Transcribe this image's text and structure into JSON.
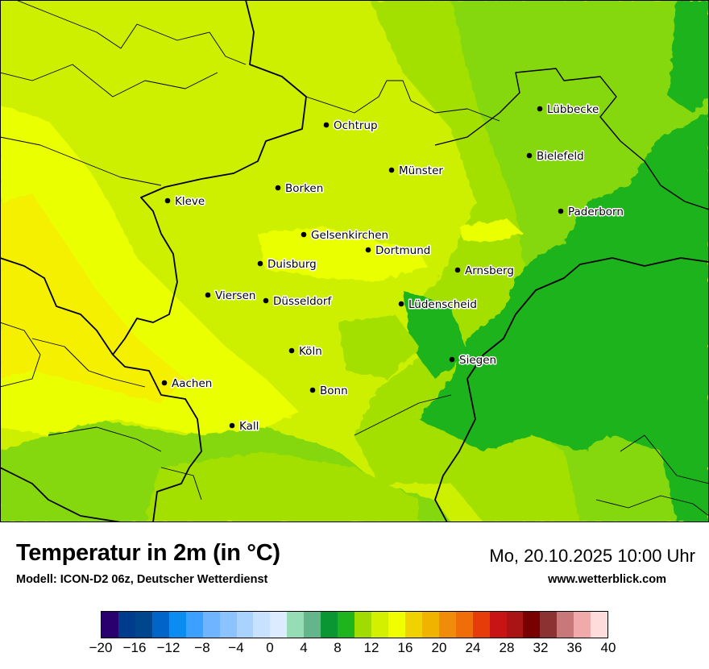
{
  "map": {
    "cities": [
      {
        "name": "Lübbecke"
      },
      {
        "name": "Ochtrup"
      },
      {
        "name": "Bielefeld"
      },
      {
        "name": "Münster"
      },
      {
        "name": "Borken"
      },
      {
        "name": "Kleve"
      },
      {
        "name": "Paderborn"
      },
      {
        "name": "Gelsenkirchen"
      },
      {
        "name": "Dortmund"
      },
      {
        "name": "Duisburg"
      },
      {
        "name": "Arnsberg"
      },
      {
        "name": "Viersen"
      },
      {
        "name": "Düsseldorf"
      },
      {
        "name": "Lüdenscheid"
      },
      {
        "name": "Köln"
      },
      {
        "name": "Siegen"
      },
      {
        "name": "Aachen"
      },
      {
        "name": "Bonn"
      },
      {
        "name": "Kall"
      }
    ],
    "field_colors": {
      "c8": "#1fb31f",
      "c10": "#85d80a",
      "c12": "#a3e000",
      "c14": "#cdef00",
      "c16": "#eaff00",
      "c18": "#f4f000"
    }
  },
  "footer": {
    "title": "Temperatur in 2m (in °C)",
    "model": "Modell: ICON-D2 06z, Deutscher Wetterdienst",
    "datetime": "Mo, 20.10.2025 10:00 Uhr",
    "website": "www.wetterblick.com"
  },
  "legend": {
    "colors": [
      "#2a006e",
      "#003c8c",
      "#00468c",
      "#0064c8",
      "#0a8cf0",
      "#3ca0ff",
      "#6eb4ff",
      "#8cc3ff",
      "#aad2ff",
      "#c8e1ff",
      "#dcebff",
      "#96dcb4",
      "#64b48c",
      "#0a9632",
      "#1eb41e",
      "#a0dc00",
      "#d2f000",
      "#f0ff00",
      "#f0d200",
      "#f0b400",
      "#f08c0a",
      "#f06e0a",
      "#e63c0a",
      "#c81414",
      "#aa1414",
      "#780000",
      "#8c3232",
      "#c87878",
      "#f0aaaa",
      "#ffdcdc"
    ],
    "tick_labels": [
      "−20",
      "−16",
      "−12",
      "−8",
      "−4",
      "0",
      "4",
      "8",
      "12",
      "16",
      "20",
      "24",
      "28",
      "32",
      "36",
      "40"
    ]
  }
}
